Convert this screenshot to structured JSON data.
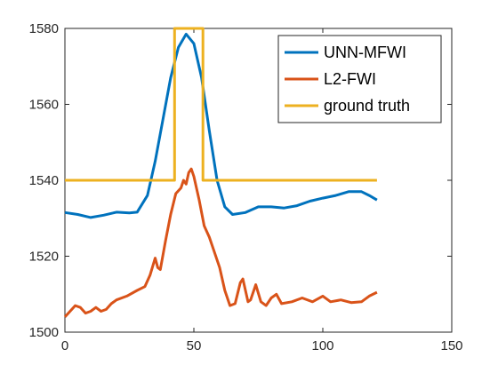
{
  "chart_data": {
    "type": "line",
    "xlim": [
      0,
      150
    ],
    "ylim": [
      1500,
      1580
    ],
    "x_ticks": [
      "0",
      "50",
      "100",
      "150"
    ],
    "y_ticks": [
      "1500",
      "1520",
      "1540",
      "1560",
      "1580"
    ],
    "grid": false,
    "legend_position": "top-right",
    "series": [
      {
        "name": "UNN-MFWI",
        "color": "#0072BD",
        "points": [
          [
            0,
            1531.5
          ],
          [
            5,
            1531
          ],
          [
            10,
            1530.2
          ],
          [
            15,
            1530.8
          ],
          [
            20,
            1531.6
          ],
          [
            25,
            1531.4
          ],
          [
            28,
            1531.6
          ],
          [
            32,
            1536
          ],
          [
            35,
            1545
          ],
          [
            38,
            1556
          ],
          [
            41,
            1567
          ],
          [
            44,
            1575
          ],
          [
            47,
            1578.5
          ],
          [
            50,
            1576
          ],
          [
            53,
            1567
          ],
          [
            56,
            1553
          ],
          [
            59,
            1540
          ],
          [
            62,
            1533
          ],
          [
            65,
            1531
          ],
          [
            70,
            1531.5
          ],
          [
            75,
            1533
          ],
          [
            80,
            1533
          ],
          [
            85,
            1532.7
          ],
          [
            90,
            1533.3
          ],
          [
            95,
            1534.5
          ],
          [
            100,
            1535.3
          ],
          [
            105,
            1536
          ],
          [
            110,
            1537
          ],
          [
            115,
            1537
          ],
          [
            118,
            1536
          ],
          [
            121,
            1534.8
          ]
        ]
      },
      {
        "name": "L2-FWI",
        "color": "#D95319",
        "points": [
          [
            0,
            1504
          ],
          [
            2,
            1505.5
          ],
          [
            4,
            1507
          ],
          [
            6,
            1506.5
          ],
          [
            8,
            1505
          ],
          [
            10,
            1505.5
          ],
          [
            12,
            1506.5
          ],
          [
            14,
            1505.5
          ],
          [
            16,
            1506
          ],
          [
            18,
            1507.5
          ],
          [
            20,
            1508.5
          ],
          [
            24,
            1509.5
          ],
          [
            28,
            1511
          ],
          [
            31,
            1512
          ],
          [
            33,
            1515
          ],
          [
            35,
            1519.5
          ],
          [
            36,
            1517
          ],
          [
            37,
            1516.5
          ],
          [
            39,
            1524
          ],
          [
            41,
            1531
          ],
          [
            43,
            1536.5
          ],
          [
            45,
            1538
          ],
          [
            46,
            1540
          ],
          [
            47,
            1539
          ],
          [
            48,
            1542
          ],
          [
            49,
            1543
          ],
          [
            50,
            1541
          ],
          [
            52,
            1535
          ],
          [
            54,
            1528
          ],
          [
            56,
            1525
          ],
          [
            58,
            1521
          ],
          [
            60,
            1517
          ],
          [
            62,
            1511
          ],
          [
            64,
            1507
          ],
          [
            66,
            1507.5
          ],
          [
            68,
            1513
          ],
          [
            69,
            1514
          ],
          [
            71,
            1508
          ],
          [
            72,
            1508.5
          ],
          [
            74,
            1512.5
          ],
          [
            76,
            1508
          ],
          [
            78,
            1507
          ],
          [
            80,
            1509
          ],
          [
            82,
            1510
          ],
          [
            84,
            1507.5
          ],
          [
            88,
            1508
          ],
          [
            92,
            1509
          ],
          [
            96,
            1508
          ],
          [
            100,
            1509.5
          ],
          [
            103,
            1508
          ],
          [
            107,
            1508.5
          ],
          [
            111,
            1507.8
          ],
          [
            115,
            1508
          ],
          [
            118,
            1509.5
          ],
          [
            121,
            1510.5
          ]
        ]
      },
      {
        "name": "ground truth",
        "color": "#EDB120",
        "points": [
          [
            0,
            1540
          ],
          [
            42.5,
            1540
          ],
          [
            42.5,
            1580
          ],
          [
            53.5,
            1580
          ],
          [
            53.5,
            1540
          ],
          [
            121,
            1540
          ]
        ]
      }
    ]
  }
}
